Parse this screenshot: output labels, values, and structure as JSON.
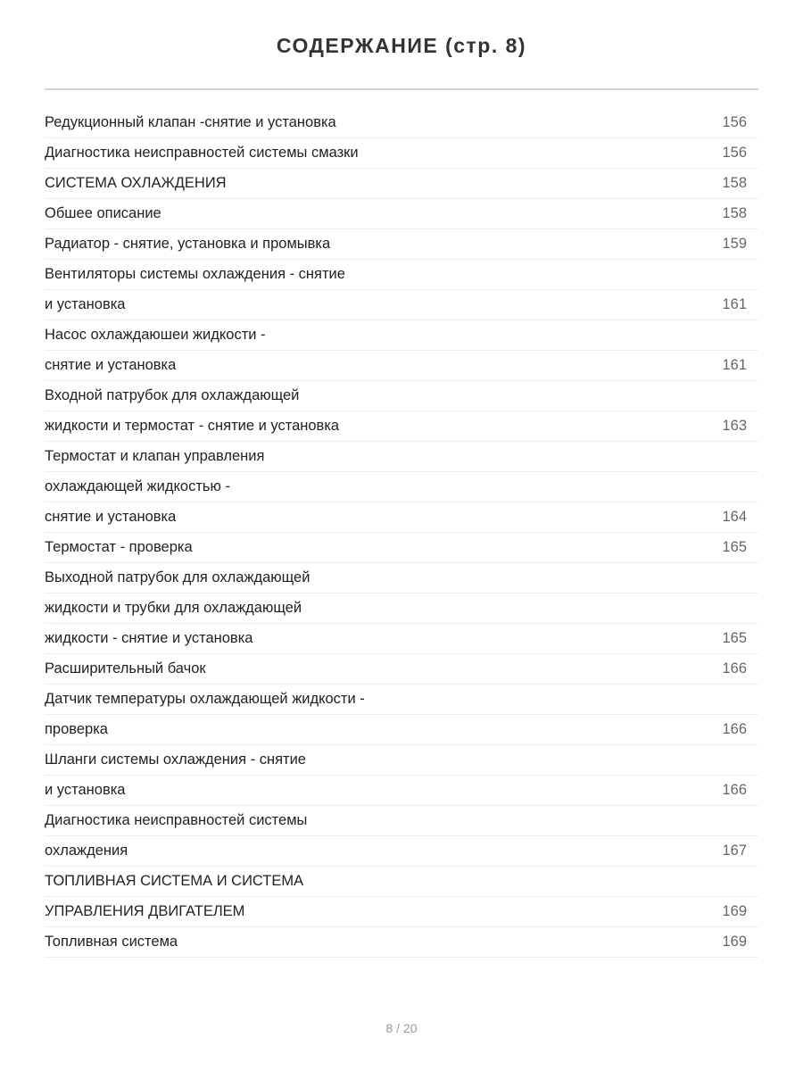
{
  "title": "СОДЕРЖАНИЕ (стр. 8)",
  "entries": [
    {
      "text": "Редукционный клапан -снятие и установка",
      "page": "156"
    },
    {
      "text": "Диагностика неисправностей системы смазки",
      "page": "156"
    },
    {
      "text": "СИСТЕМА ОХЛАЖДЕНИЯ",
      "page": "158"
    },
    {
      "text": "Обшее описание",
      "page": "158"
    },
    {
      "text": "Радиатор - снятие, установка и промывка",
      "page": "159"
    },
    {
      "text": "Вентиляторы системы охлаждения - снятие",
      "page": ""
    },
    {
      "text": "и установка",
      "page": "161"
    },
    {
      "text": "Насос охлаждаюшеи жидкости -",
      "page": ""
    },
    {
      "text": "снятие и установка",
      "page": "161"
    },
    {
      "text": "Входной патрубок для охлаждающей",
      "page": ""
    },
    {
      "text": "жидкости и термостат - снятие и установка",
      "page": "163"
    },
    {
      "text": "Термостат и клапан управления",
      "page": ""
    },
    {
      "text": "охлаждающей жидкостью -",
      "page": ""
    },
    {
      "text": "снятие и установка",
      "page": "164"
    },
    {
      "text": "Термостат - проверка",
      "page": "165"
    },
    {
      "text": "Выходной патрубок для охлаждающей",
      "page": ""
    },
    {
      "text": "жидкости и трубки для охлаждающей",
      "page": ""
    },
    {
      "text": "жидкости - снятие и установка",
      "page": "165"
    },
    {
      "text": "Расширительный бачок",
      "page": "166"
    },
    {
      "text": "Датчик температуры охлаждающей жидкости -",
      "page": ""
    },
    {
      "text": "проверка",
      "page": "166"
    },
    {
      "text": "Шланги системы охлаждения - снятие",
      "page": ""
    },
    {
      "text": "и установка",
      "page": "166"
    },
    {
      "text": "Диагностика неисправностей системы",
      "page": ""
    },
    {
      "text": "охлаждения",
      "page": "167"
    },
    {
      "text": "ТОПЛИВНАЯ СИСТЕМА И СИСТЕМА",
      "page": ""
    },
    {
      "text": "УПРАВЛЕНИЯ ДВИГАТЕЛЕМ",
      "page": "169"
    },
    {
      "text": "Топливная система",
      "page": "169"
    }
  ],
  "footer": "8 / 20"
}
